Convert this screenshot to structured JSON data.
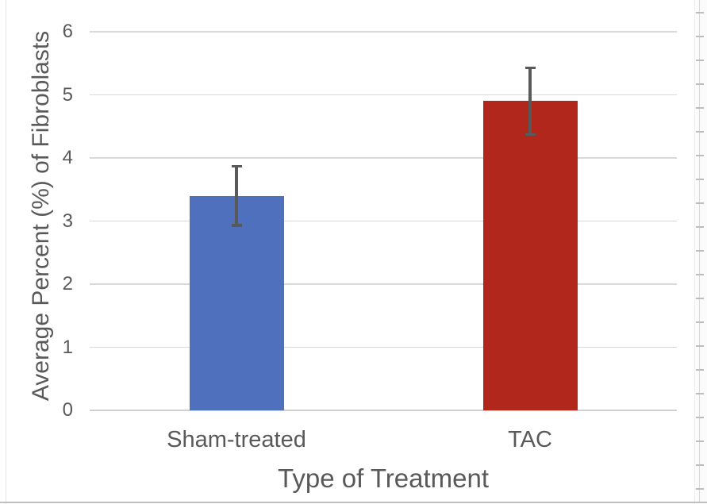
{
  "chart_data": {
    "type": "bar",
    "title": "",
    "xlabel": "Type of Treatment",
    "ylabel": "Average Percent (%) of Fibroblasts",
    "categories": [
      "Sham-treated",
      "TAC"
    ],
    "values": [
      3.4,
      4.9
    ],
    "error_bars": [
      0.47,
      0.53
    ],
    "bar_colors": [
      "#4F71BD",
      "#B2271C"
    ],
    "ylim": [
      0,
      6
    ],
    "yticks": [
      0,
      1,
      2,
      3,
      4,
      5,
      6
    ],
    "grid": "horizontal",
    "legend": "none",
    "colors": {
      "gridline": "#D9D9D9",
      "axis_text": "#595959",
      "error_bar": "#595959",
      "background": "#FFFFFF"
    }
  }
}
